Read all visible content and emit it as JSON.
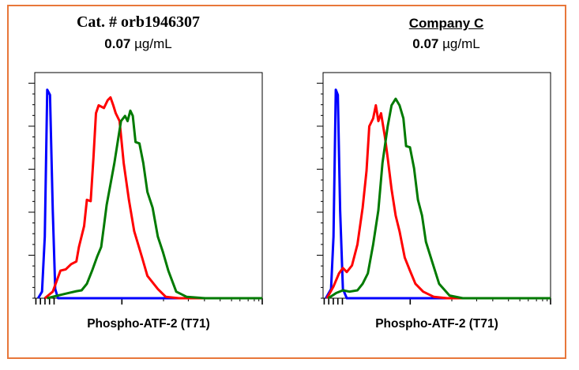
{
  "chart_data": [
    {
      "type": "line",
      "title": "Cat. # orb1946307",
      "subtitle_value": "0.07",
      "subtitle_unit": "µg/mL",
      "xlabel": "Phospho-ATF-2 (T71)",
      "ylabel": "",
      "x_scale": "log",
      "xlim": [
        0,
        100
      ],
      "ylim": [
        0,
        100
      ],
      "grid": false,
      "series": [
        {
          "color": "#0000FF",
          "x": [
            1.5,
            3.2,
            4.4,
            5.5,
            6.7,
            7.9,
            9.0,
            10.2,
            100
          ],
          "y": [
            0,
            2.9,
            27.3,
            92.4,
            90.1,
            38.9,
            4.1,
            0,
            0
          ]
        },
        {
          "color": "#FF0000",
          "x": [
            4.4,
            7.9,
            11.3,
            13.6,
            16.0,
            18.3,
            19.4,
            21.7,
            22.9,
            24.6,
            25.8,
            26.9,
            28.1,
            30.4,
            32.1,
            33.3,
            34.5,
            35.6,
            37.3,
            39.1,
            41.4,
            43.7,
            47.2,
            49.5,
            54.1,
            57.6,
            63.4,
            100
          ],
          "y": [
            0,
            2.9,
            12.2,
            12.8,
            15.1,
            16.3,
            22.7,
            32.0,
            43.6,
            43.0,
            62.2,
            82.0,
            85.5,
            84.3,
            87.8,
            89.0,
            85.5,
            82.0,
            78.5,
            59.9,
            43.6,
            29.7,
            18.0,
            9.9,
            4.1,
            0.6,
            0,
            0
          ]
        },
        {
          "color": "#007A00",
          "x": [
            5.5,
            10.2,
            14.8,
            18.3,
            20.6,
            22.9,
            25.2,
            27.5,
            29.2,
            30.4,
            31.6,
            33.3,
            35.0,
            36.8,
            37.9,
            39.7,
            40.8,
            42.0,
            43.1,
            44.3,
            46.0,
            47.7,
            49.5,
            51.8,
            54.1,
            56.4,
            58.7,
            62.2,
            66.8,
            74.9,
            100
          ],
          "y": [
            0,
            1.2,
            2.3,
            3.1,
            3.5,
            6.4,
            12.2,
            18.6,
            22.7,
            32.0,
            41.3,
            50.6,
            59.9,
            71.5,
            78.5,
            80.8,
            78.5,
            83.1,
            80.8,
            69.2,
            68.6,
            59.9,
            47.1,
            40.1,
            27.3,
            20.3,
            12.2,
            2.9,
            0.6,
            0,
            0
          ]
        }
      ]
    },
    {
      "type": "line",
      "title": "Company C",
      "subtitle_value": "0.07",
      "subtitle_unit": "µg/mL",
      "xlabel": "Phospho-ATF-2 (T71)",
      "ylabel": "",
      "x_scale": "log",
      "xlim": [
        0,
        100
      ],
      "ylim": [
        0,
        100
      ],
      "grid": false,
      "series": [
        {
          "color": "#0000FF",
          "x": [
            1.2,
            3.5,
            4.6,
            5.6,
            6.5,
            7.5,
            8.7,
            10.4,
            100
          ],
          "y": [
            0,
            4.1,
            27.3,
            92.4,
            90.1,
            38.9,
            4.1,
            0,
            0
          ]
        },
        {
          "color": "#FF0000",
          "x": [
            1.7,
            4.6,
            7.0,
            8.7,
            10.4,
            12.7,
            15.1,
            17.4,
            19.1,
            20.3,
            22.0,
            23.2,
            24.3,
            25.5,
            27.2,
            28.4,
            30.1,
            31.9,
            33.6,
            35.9,
            38.2,
            40.6,
            44.0,
            48.7,
            54.5,
            100
          ],
          "y": [
            0,
            5.2,
            11.0,
            13.4,
            11.6,
            14.5,
            23.8,
            40.1,
            56.4,
            76.2,
            79.7,
            85.5,
            78.5,
            82.0,
            71.5,
            62.2,
            48.3,
            36.6,
            29.7,
            18.0,
            12.2,
            6.4,
            2.9,
            0.6,
            0,
            0
          ]
        },
        {
          "color": "#007A00",
          "x": [
            2.3,
            5.8,
            8.7,
            11.6,
            15.1,
            17.4,
            19.7,
            22.0,
            24.3,
            26.1,
            28.4,
            30.1,
            31.9,
            33.6,
            35.3,
            36.5,
            38.2,
            40.0,
            41.7,
            43.5,
            45.2,
            48.1,
            51.0,
            55.6,
            61.4,
            100
          ],
          "y": [
            0,
            2.3,
            3.5,
            2.9,
            3.5,
            6.4,
            11.0,
            23.8,
            39.0,
            59.9,
            76.2,
            85.5,
            88.4,
            85.5,
            79.7,
            67.4,
            66.9,
            57.6,
            43.6,
            36.6,
            25.0,
            15.7,
            6.4,
            1.2,
            0,
            0
          ]
        }
      ]
    }
  ],
  "colors": {
    "border": "#E8773A"
  }
}
